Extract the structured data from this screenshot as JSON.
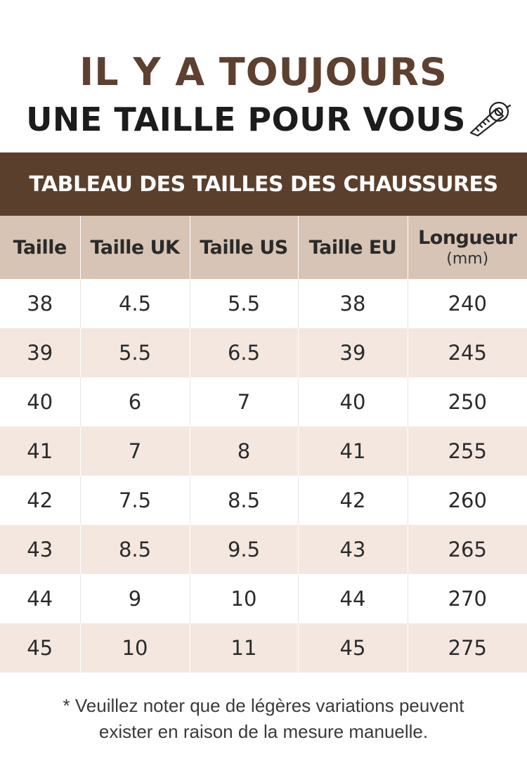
{
  "header": {
    "line1": "IL Y A TOUJOURS",
    "line2": "UNE TAILLE POUR VOUS",
    "icon": "measuring-tape-icon"
  },
  "banner": {
    "title": "TABLEAU DES TAILLES DES CHAUSSURES"
  },
  "table": {
    "headers": [
      "Taille",
      "Taille UK",
      "Taille US",
      "Taille EU",
      "Longueur"
    ],
    "unit": "(mm)",
    "rows": [
      [
        "38",
        "4.5",
        "5.5",
        "38",
        "240"
      ],
      [
        "39",
        "5.5",
        "6.5",
        "39",
        "245"
      ],
      [
        "40",
        "6",
        "7",
        "40",
        "250"
      ],
      [
        "41",
        "7",
        "8",
        "41",
        "255"
      ],
      [
        "42",
        "7.5",
        "8.5",
        "42",
        "260"
      ],
      [
        "43",
        "8.5",
        "9.5",
        "43",
        "265"
      ],
      [
        "44",
        "9",
        "10",
        "44",
        "270"
      ],
      [
        "45",
        "10",
        "11",
        "45",
        "275"
      ]
    ]
  },
  "footnote": {
    "line1": "* Veuillez noter que de légères variations peuvent",
    "line2": "exister en raison de la mesure manuelle."
  },
  "colors": {
    "brown": "#5b3f2d",
    "header_row": "#d7c4b5",
    "stripe": "#f4e7e0"
  }
}
